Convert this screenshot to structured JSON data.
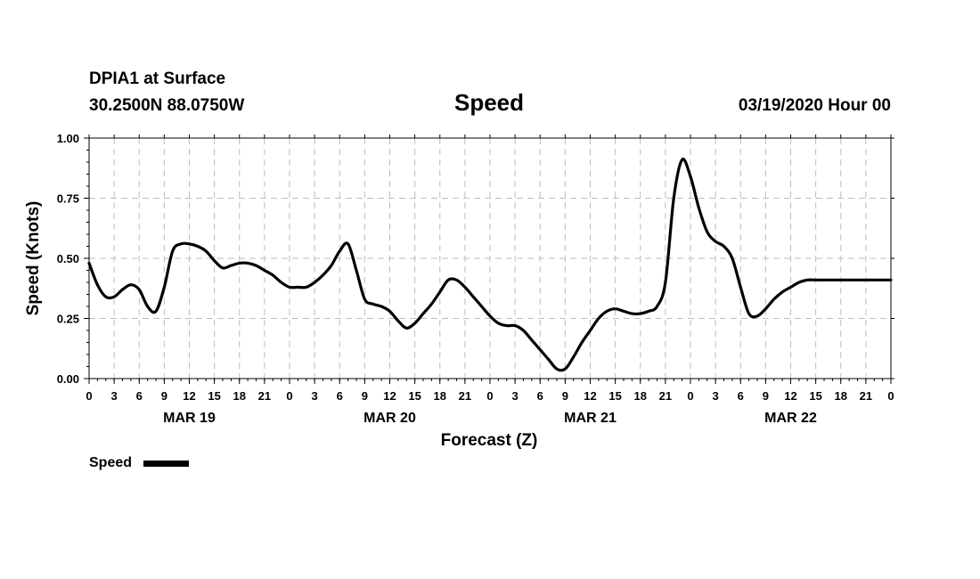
{
  "header": {
    "station": "DPIA1 at Surface",
    "coords": "30.2500N 88.0750W",
    "title": "Speed",
    "run": "03/19/2020 Hour 00"
  },
  "chart_data": {
    "type": "line",
    "title": "Speed",
    "xlabel": "Forecast (Z)",
    "ylabel": "Speed (Knots)",
    "xlim": [
      0,
      96
    ],
    "ylim": [
      0,
      1.0
    ],
    "grid": true,
    "legend_position": "bottom-left",
    "yticks": [
      "0.00",
      "0.25",
      "0.50",
      "0.75",
      "1.00"
    ],
    "xticks": [
      "0",
      "3",
      "6",
      "9",
      "12",
      "15",
      "18",
      "21",
      "0",
      "3",
      "6",
      "9",
      "12",
      "15",
      "18",
      "21",
      "0",
      "3",
      "6",
      "9",
      "12",
      "15",
      "18",
      "21",
      "0",
      "3",
      "6",
      "9",
      "12",
      "15",
      "18",
      "21",
      "0"
    ],
    "date_labels": [
      {
        "label": "MAR 19",
        "hour": 12
      },
      {
        "label": "MAR 20",
        "hour": 36
      },
      {
        "label": "MAR 21",
        "hour": 60
      },
      {
        "label": "MAR 22",
        "hour": 84
      }
    ],
    "series": [
      {
        "name": "Speed",
        "color": "#000000",
        "x": [
          0,
          1,
          2,
          3,
          4,
          5,
          6,
          7,
          8,
          9,
          10,
          11,
          12,
          13,
          14,
          15,
          16,
          17,
          18,
          19,
          20,
          21,
          22,
          23,
          24,
          25,
          26,
          27,
          28,
          29,
          30,
          31,
          32,
          33,
          34,
          35,
          36,
          37,
          38,
          39,
          40,
          41,
          42,
          43,
          44,
          45,
          46,
          47,
          48,
          49,
          50,
          51,
          52,
          53,
          54,
          55,
          56,
          57,
          58,
          59,
          60,
          61,
          62,
          63,
          64,
          65,
          66,
          67,
          68,
          69,
          70,
          71,
          72,
          73,
          74,
          75,
          76,
          77,
          78,
          79,
          80,
          81,
          82,
          83,
          84,
          85,
          86,
          87,
          88,
          89,
          90,
          91,
          92,
          93,
          94,
          95,
          96
        ],
        "values": [
          0.48,
          0.39,
          0.34,
          0.34,
          0.37,
          0.39,
          0.37,
          0.3,
          0.28,
          0.38,
          0.53,
          0.56,
          0.56,
          0.55,
          0.53,
          0.49,
          0.46,
          0.47,
          0.48,
          0.48,
          0.47,
          0.45,
          0.43,
          0.4,
          0.38,
          0.38,
          0.38,
          0.4,
          0.43,
          0.47,
          0.53,
          0.56,
          0.45,
          0.33,
          0.31,
          0.3,
          0.28,
          0.24,
          0.21,
          0.23,
          0.27,
          0.31,
          0.36,
          0.41,
          0.41,
          0.38,
          0.34,
          0.3,
          0.26,
          0.23,
          0.22,
          0.22,
          0.2,
          0.16,
          0.12,
          0.08,
          0.04,
          0.04,
          0.09,
          0.15,
          0.2,
          0.25,
          0.28,
          0.29,
          0.28,
          0.27,
          0.27,
          0.28,
          0.3,
          0.4,
          0.75,
          0.91,
          0.84,
          0.71,
          0.61,
          0.57,
          0.55,
          0.5,
          0.38,
          0.27,
          0.26,
          0.29,
          0.33,
          0.36,
          0.38,
          0.4,
          0.41,
          0.41,
          0.41,
          0.41,
          0.41,
          0.41,
          0.41,
          0.41,
          0.41,
          0.41,
          0.41
        ]
      }
    ]
  }
}
